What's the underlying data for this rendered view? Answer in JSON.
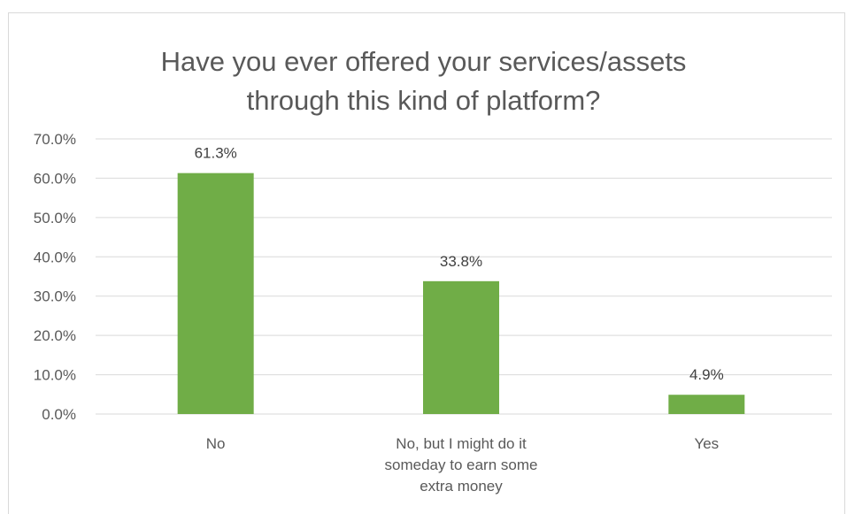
{
  "chart_data": {
    "type": "bar",
    "title": "Have you ever offered your services/assets\nthrough this kind of platform?",
    "categories": [
      "No",
      "No, but I might do it\nsomeday to earn some\nextra money",
      "Yes"
    ],
    "values": [
      61.3,
      33.8,
      4.9
    ],
    "data_labels": [
      "61.3%",
      "33.8%",
      "4.9%"
    ],
    "ylim": [
      0,
      70
    ],
    "yticks": [
      0,
      10,
      20,
      30,
      40,
      50,
      60,
      70
    ],
    "ytick_labels": [
      "0.0%",
      "10.0%",
      "20.0%",
      "30.0%",
      "40.0%",
      "50.0%",
      "60.0%",
      "70.0%"
    ],
    "grid": true,
    "legend": "none",
    "bar_color": "#70ad47",
    "gridline_color": "#d9d9d9"
  }
}
